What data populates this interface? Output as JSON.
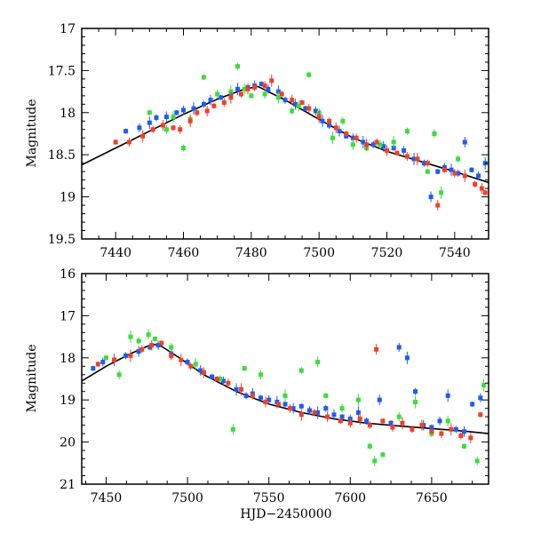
{
  "chart_data": [
    {
      "type": "scatter",
      "title": "",
      "xlabel": "",
      "ylabel": "Magnitude",
      "xlim": [
        7430,
        7550
      ],
      "ylim": [
        19.5,
        17
      ],
      "y_inverted": true,
      "xticks": [
        7440,
        7460,
        7480,
        7500,
        7520,
        7540
      ],
      "yticks": [
        17,
        17.5,
        18,
        18.5,
        19,
        19.5
      ],
      "xtick_labels": [
        "7440",
        "7460",
        "7480",
        "7500",
        "7520",
        "7540"
      ],
      "ytick_labels": [
        "17",
        "17.5",
        "18",
        "18.5",
        "19",
        "19.5"
      ],
      "model": {
        "name": "model fit",
        "color": "#000000",
        "x": [
          7430,
          7440,
          7450,
          7460,
          7470,
          7478,
          7482,
          7490,
          7500,
          7510,
          7520,
          7530,
          7540,
          7550
        ],
        "y": [
          18.62,
          18.42,
          18.22,
          18.02,
          17.84,
          17.72,
          17.69,
          17.85,
          18.08,
          18.3,
          18.46,
          18.58,
          18.7,
          18.83
        ]
      },
      "series": [
        {
          "name": "blue",
          "color": "#1f5cf2",
          "x": [
            7443,
            7447,
            7450,
            7452,
            7455,
            7458,
            7460,
            7463,
            7466,
            7468,
            7471,
            7474,
            7476,
            7479,
            7481,
            7483,
            7485,
            7488,
            7490,
            7493,
            7496,
            7499,
            7501,
            7503,
            7506,
            7508,
            7510,
            7513,
            7516,
            7519,
            7522,
            7525,
            7528,
            7531,
            7533,
            7535,
            7537,
            7539,
            7541,
            7543,
            7545,
            7547,
            7549
          ],
          "y": [
            18.22,
            18.18,
            18.12,
            18.06,
            18.05,
            18.0,
            17.97,
            17.95,
            17.9,
            17.85,
            17.82,
            17.78,
            17.72,
            17.7,
            17.68,
            17.66,
            17.72,
            17.75,
            17.85,
            17.9,
            17.95,
            17.98,
            18.1,
            18.15,
            18.22,
            18.28,
            18.3,
            18.35,
            18.38,
            18.4,
            18.42,
            18.45,
            18.55,
            18.6,
            19.0,
            18.7,
            18.65,
            18.68,
            18.72,
            18.35,
            18.68,
            18.75,
            18.6
          ]
        },
        {
          "name": "green",
          "color": "#3ddc3d",
          "x": [
            7450,
            7455,
            7457,
            7460,
            7462,
            7466,
            7470,
            7474,
            7476,
            7478,
            7480,
            7484,
            7488,
            7492,
            7494,
            7497,
            7500,
            7504,
            7507,
            7510,
            7514,
            7518,
            7522,
            7526,
            7529,
            7532,
            7534,
            7536,
            7541
          ],
          "y": [
            18.0,
            18.2,
            18.05,
            18.42,
            18.08,
            17.58,
            17.78,
            17.75,
            17.45,
            17.72,
            17.8,
            17.78,
            17.82,
            17.98,
            17.92,
            17.55,
            18.0,
            18.3,
            18.1,
            18.38,
            18.42,
            18.38,
            18.35,
            18.22,
            18.55,
            18.7,
            18.25,
            18.95,
            18.55
          ]
        },
        {
          "name": "red",
          "color": "#f0402a",
          "x": [
            7440,
            7444,
            7448,
            7451,
            7454,
            7457,
            7459,
            7462,
            7464,
            7467,
            7469,
            7472,
            7474,
            7477,
            7479,
            7481,
            7484,
            7486,
            7489,
            7492,
            7495,
            7497,
            7500,
            7503,
            7505,
            7508,
            7511,
            7514,
            7517,
            7520,
            7523,
            7526,
            7529,
            7532,
            7535,
            7537,
            7540,
            7543,
            7546,
            7548,
            7549
          ],
          "y": [
            18.35,
            18.35,
            18.28,
            18.2,
            18.15,
            18.18,
            18.2,
            18.1,
            18.0,
            17.98,
            17.92,
            17.88,
            17.82,
            17.78,
            17.72,
            17.7,
            17.68,
            17.62,
            17.78,
            17.85,
            17.88,
            17.95,
            18.05,
            18.1,
            18.18,
            18.25,
            18.3,
            18.38,
            18.35,
            18.45,
            18.48,
            18.52,
            18.55,
            18.6,
            19.1,
            18.68,
            18.72,
            18.75,
            18.85,
            18.9,
            18.95
          ]
        }
      ]
    },
    {
      "type": "scatter",
      "title": "",
      "xlabel": "HJD−2450000",
      "ylabel": "Magnitude",
      "xlim": [
        7435,
        7685
      ],
      "ylim": [
        21,
        16
      ],
      "y_inverted": true,
      "xticks": [
        7450,
        7500,
        7550,
        7600,
        7650
      ],
      "yticks": [
        16,
        17,
        18,
        19,
        20,
        21
      ],
      "xtick_labels": [
        "7450",
        "7500",
        "7550",
        "7600",
        "7650"
      ],
      "ytick_labels": [
        "16",
        "17",
        "18",
        "19",
        "20",
        "21"
      ],
      "model": {
        "name": "model fit",
        "color": "#000000",
        "x": [
          7435,
          7450,
          7465,
          7478,
          7483,
          7495,
          7510,
          7530,
          7550,
          7570,
          7590,
          7610,
          7630,
          7650,
          7670,
          7685
        ],
        "y": [
          18.55,
          18.2,
          17.9,
          17.68,
          17.7,
          18.0,
          18.4,
          18.8,
          19.1,
          19.3,
          19.45,
          19.55,
          19.62,
          19.68,
          19.74,
          19.8
        ]
      },
      "series": [
        {
          "name": "blue",
          "color": "#1f5cf2",
          "x": [
            7442,
            7448,
            7455,
            7462,
            7470,
            7477,
            7482,
            7490,
            7500,
            7508,
            7515,
            7522,
            7530,
            7536,
            7540,
            7545,
            7550,
            7555,
            7560,
            7565,
            7570,
            7575,
            7580,
            7585,
            7590,
            7595,
            7600,
            7605,
            7610,
            7618,
            7625,
            7630,
            7635,
            7640,
            7645,
            7650,
            7655,
            7660,
            7665,
            7670,
            7675,
            7680
          ],
          "y": [
            18.25,
            18.1,
            18.05,
            17.95,
            17.85,
            17.75,
            17.7,
            17.9,
            18.1,
            18.3,
            18.45,
            18.55,
            18.75,
            18.9,
            18.85,
            18.95,
            19.0,
            19.05,
            19.1,
            19.2,
            19.15,
            19.25,
            19.3,
            19.2,
            19.35,
            19.4,
            19.45,
            19.3,
            19.5,
            19.0,
            19.55,
            17.75,
            18.0,
            18.8,
            19.6,
            19.65,
            19.5,
            18.9,
            19.7,
            19.75,
            19.1,
            18.95
          ]
        },
        {
          "name": "green",
          "color": "#3ddc3d",
          "x": [
            7450,
            7458,
            7465,
            7470,
            7476,
            7480,
            7490,
            7505,
            7520,
            7528,
            7535,
            7545,
            7560,
            7570,
            7580,
            7585,
            7595,
            7605,
            7612,
            7615,
            7620,
            7630,
            7640,
            7650,
            7660,
            7670,
            7678,
            7682
          ],
          "y": [
            18.0,
            18.4,
            17.5,
            17.6,
            17.45,
            17.55,
            17.75,
            18.15,
            18.5,
            19.7,
            18.25,
            18.4,
            18.9,
            18.3,
            18.1,
            18.9,
            19.2,
            19.0,
            20.1,
            20.45,
            20.3,
            19.4,
            19.05,
            19.8,
            19.5,
            20.1,
            20.45,
            18.65
          ]
        },
        {
          "name": "red",
          "color": "#f0402a",
          "x": [
            7445,
            7455,
            7465,
            7472,
            7478,
            7484,
            7490,
            7496,
            7502,
            7510,
            7518,
            7525,
            7533,
            7540,
            7548,
            7556,
            7563,
            7570,
            7578,
            7586,
            7594,
            7600,
            7606,
            7612,
            7616,
            7620,
            7626,
            7632,
            7638,
            7644,
            7650,
            7656,
            7662,
            7668,
            7674,
            7680
          ],
          "y": [
            18.15,
            18.05,
            17.95,
            17.8,
            17.7,
            17.65,
            17.95,
            18.05,
            18.2,
            18.35,
            18.5,
            18.6,
            18.75,
            18.9,
            19.05,
            19.1,
            19.2,
            19.35,
            19.3,
            19.4,
            19.5,
            19.55,
            19.45,
            19.6,
            17.8,
            19.5,
            19.65,
            19.55,
            19.7,
            19.6,
            19.75,
            19.8,
            19.7,
            19.85,
            19.9,
            19.35
          ]
        }
      ]
    }
  ]
}
